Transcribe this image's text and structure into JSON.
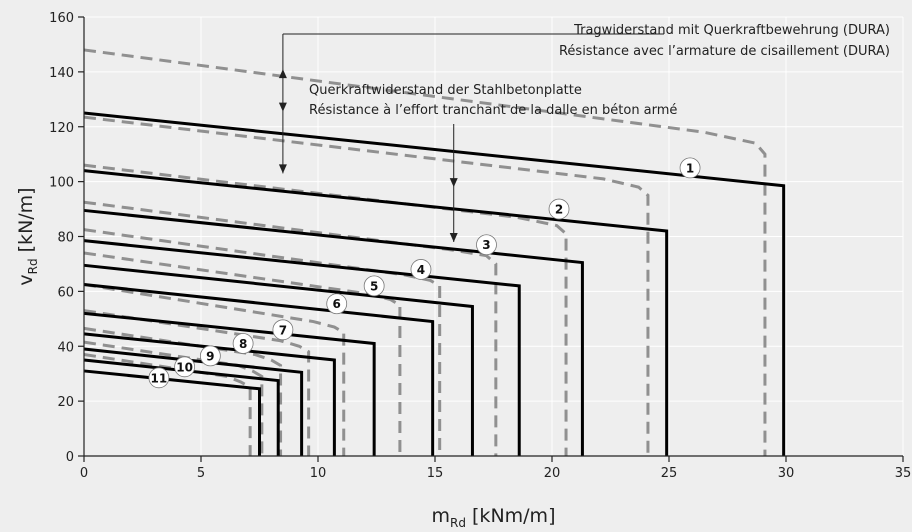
{
  "chart_data": {
    "type": "line",
    "xlim": [
      0,
      35
    ],
    "ylim": [
      0,
      160
    ],
    "x_ticks": [
      0,
      5,
      10,
      15,
      20,
      25,
      30,
      35
    ],
    "y_ticks": [
      0,
      20,
      40,
      60,
      80,
      100,
      120,
      140,
      160
    ],
    "grid": true,
    "xlabel": {
      "main": "m",
      "sub": "Rd",
      "unit": " [kNm/m]"
    },
    "ylabel": {
      "main": "v",
      "sub": "Rd",
      "unit": " [kN/m]"
    },
    "annotations": {
      "dura_de": "Tragwiderstand mit Querkraftbewehrung (DURA)",
      "dura_fr": "Résistance avec l’armature de cisaillement (DURA)",
      "slab_de": "Querkraftwiderstand der Stahlbetonplatte",
      "slab_fr": "Résistance à l’effort tranchant de la dalle en béton armé"
    },
    "solid_series": [
      {
        "label": "1",
        "x": [
          0,
          29.9,
          29.9
        ],
        "y": [
          125,
          98.5,
          0
        ]
      },
      {
        "label": "2",
        "x": [
          0,
          24.9,
          24.9
        ],
        "y": [
          104,
          82,
          0
        ]
      },
      {
        "label": "3",
        "x": [
          0,
          21.3,
          21.3
        ],
        "y": [
          89.5,
          70.5,
          0
        ]
      },
      {
        "label": "4",
        "x": [
          0,
          18.6,
          18.6
        ],
        "y": [
          78.5,
          62,
          0
        ]
      },
      {
        "label": "5",
        "x": [
          0,
          16.6,
          16.6
        ],
        "y": [
          69.5,
          54.5,
          0
        ]
      },
      {
        "label": "6",
        "x": [
          0,
          14.9,
          14.9
        ],
        "y": [
          62.5,
          49,
          0
        ]
      },
      {
        "label": "7",
        "x": [
          0,
          12.4,
          12.4
        ],
        "y": [
          52,
          41,
          0
        ]
      },
      {
        "label": "8",
        "x": [
          0,
          10.7,
          10.7
        ],
        "y": [
          44.5,
          35,
          0
        ]
      },
      {
        "label": "9",
        "x": [
          0,
          9.3,
          9.3
        ],
        "y": [
          39,
          30.5,
          0
        ]
      },
      {
        "label": "10",
        "x": [
          0,
          8.3,
          8.3
        ],
        "y": [
          35,
          27.5,
          0
        ]
      },
      {
        "label": "11",
        "x": [
          0,
          7.5,
          7.5
        ],
        "y": [
          31,
          24.5,
          0
        ]
      }
    ],
    "dashed_series": [
      {
        "x": [
          0,
          26.5,
          28.7,
          29.1,
          29.1
        ],
        "y": [
          148,
          118,
          114,
          110,
          0
        ]
      },
      {
        "x": [
          0,
          22.2,
          23.7,
          24.1,
          24.1
        ],
        "y": [
          123.5,
          101,
          98,
          95,
          0
        ]
      },
      {
        "x": [
          0,
          18.5,
          20.2,
          20.6,
          20.6
        ],
        "y": [
          106,
          87,
          84,
          81,
          0
        ]
      },
      {
        "x": [
          0,
          15.8,
          17.2,
          17.6,
          17.6
        ],
        "y": [
          92.5,
          75,
          73,
          70,
          0
        ]
      },
      {
        "x": [
          0,
          13.7,
          14.8,
          15.2,
          15.2
        ],
        "y": [
          82.5,
          66,
          64,
          62,
          0
        ]
      },
      {
        "x": [
          0,
          12.2,
          13.1,
          13.5,
          13.5
        ],
        "y": [
          74,
          59,
          57,
          55,
          0
        ]
      },
      {
        "x": [
          0,
          9.8,
          10.7,
          11.1,
          11.1
        ],
        "y": [
          62.5,
          49,
          47,
          45,
          0
        ]
      },
      {
        "x": [
          0,
          8.4,
          9.2,
          9.6,
          9.6
        ],
        "y": [
          53,
          42,
          40,
          38,
          0
        ]
      },
      {
        "x": [
          0,
          7.3,
          8.0,
          8.4,
          8.4
        ],
        "y": [
          46.5,
          37,
          35,
          33,
          0
        ]
      },
      {
        "x": [
          0,
          6.6,
          7.2,
          7.6,
          7.6
        ],
        "y": [
          41.5,
          33,
          31,
          29,
          0
        ]
      },
      {
        "x": [
          0,
          6.1,
          6.7,
          7.1,
          7.1
        ],
        "y": [
          37,
          29,
          27,
          25,
          0
        ]
      }
    ],
    "markers": [
      {
        "label": "1",
        "x": 25.9,
        "y": 105
      },
      {
        "label": "2",
        "x": 20.3,
        "y": 90
      },
      {
        "label": "3",
        "x": 17.2,
        "y": 77
      },
      {
        "label": "4",
        "x": 14.4,
        "y": 68
      },
      {
        "label": "5",
        "x": 12.4,
        "y": 62
      },
      {
        "label": "6",
        "x": 10.8,
        "y": 55.5
      },
      {
        "label": "7",
        "x": 8.5,
        "y": 46
      },
      {
        "label": "8",
        "x": 6.8,
        "y": 41
      },
      {
        "label": "9",
        "x": 5.4,
        "y": 36.5
      },
      {
        "label": "10",
        "x": 4.3,
        "y": 32.5
      },
      {
        "label": "11",
        "x": 3.2,
        "y": 28.5
      }
    ],
    "colors": {
      "solid": "#000000",
      "dashed": "#909090",
      "grid": "#ffffff",
      "background": "#eeeeee",
      "marker_fill": "#ffffff"
    }
  }
}
